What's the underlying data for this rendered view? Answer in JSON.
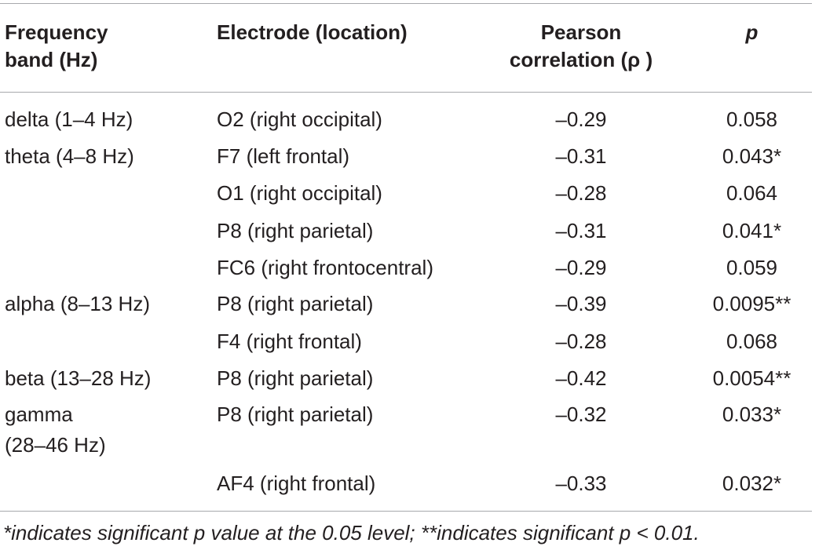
{
  "table": {
    "headers": {
      "band_line1": "Frequency",
      "band_line2": "band (Hz)",
      "electrode": "Electrode (location)",
      "corr_line1": "Pearson",
      "corr_line2": "correlation (ρ )",
      "p": "p"
    },
    "rows": [
      {
        "band": "delta (1–4 Hz)",
        "band2": "",
        "electrode": "O2 (right occipital)",
        "corr": "–0.29",
        "p": "0.058"
      },
      {
        "band": "theta (4–8 Hz)",
        "band2": "",
        "electrode": "F7 (left frontal)",
        "corr": "–0.31",
        "p": "0.043*"
      },
      {
        "band": "",
        "band2": "",
        "electrode": "O1 (right occipital)",
        "corr": "–0.28",
        "p": "0.064"
      },
      {
        "band": "",
        "band2": "",
        "electrode": "P8 (right parietal)",
        "corr": "–0.31",
        "p": "0.041*"
      },
      {
        "band": "",
        "band2": "",
        "electrode": "FC6 (right frontocentral)",
        "corr": "–0.29",
        "p": "0.059"
      },
      {
        "band": "alpha (8–13 Hz)",
        "band2": "",
        "electrode": "P8 (right parietal)",
        "corr": "–0.39",
        "p": "0.0095**"
      },
      {
        "band": "",
        "band2": "",
        "electrode": "F4 (right frontal)",
        "corr": "–0.28",
        "p": "0.068"
      },
      {
        "band": "beta (13–28 Hz)",
        "band2": "",
        "electrode": "P8 (right parietal)",
        "corr": "–0.42",
        "p": "0.0054**"
      },
      {
        "band": "gamma",
        "band2": "(28–46 Hz)",
        "electrode": "P8 (right parietal)",
        "corr": "–0.32",
        "p": "0.033*"
      },
      {
        "band": "",
        "band2": "",
        "electrode": "AF4 (right frontal)",
        "corr": "–0.33",
        "p": "0.032*"
      }
    ]
  },
  "footnote": "*indicates significant p value at the 0.05 level; **indicates significant p < 0.01."
}
